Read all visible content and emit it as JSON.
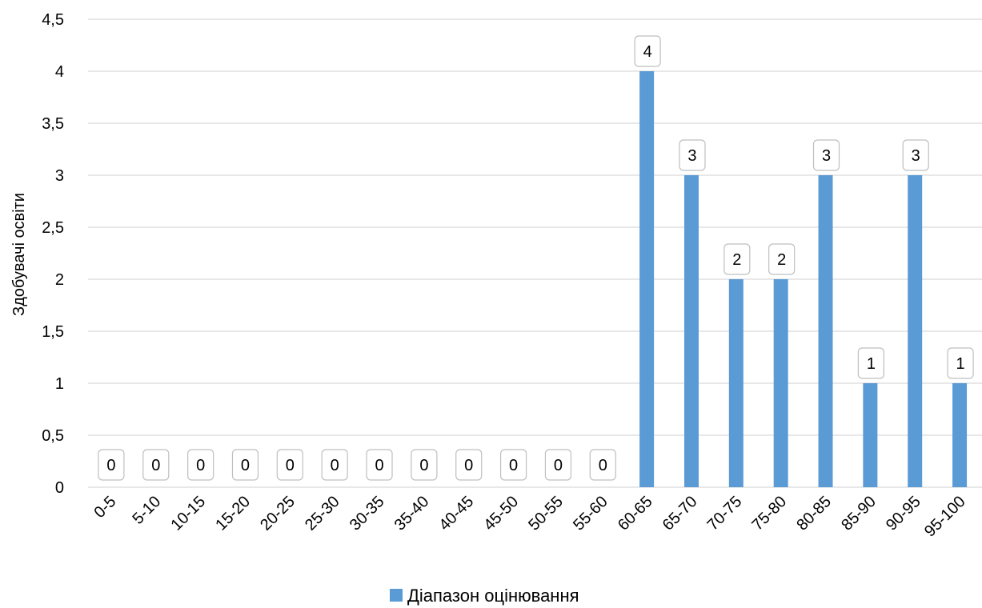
{
  "chart_data": {
    "type": "bar",
    "title": "",
    "xlabel": "",
    "ylabel": "Здобувачі освіти",
    "ylim": [
      0,
      4.5
    ],
    "yticks": [
      "0",
      "0,5",
      "1",
      "1,5",
      "2",
      "2,5",
      "3",
      "3,5",
      "4",
      "4,5"
    ],
    "grid": true,
    "legend_position": "bottom",
    "categories": [
      "0-5",
      "5-10",
      "10-15",
      "15-20",
      "20-25",
      "25-30",
      "30-35",
      "35-40",
      "40-45",
      "45-50",
      "50-55",
      "55-60",
      "60-65",
      "65-70",
      "70-75",
      "75-80",
      "80-85",
      "85-90",
      "90-95",
      "95-100"
    ],
    "series": [
      {
        "name": "Діапазон оцінювання",
        "color": "#5B9BD5",
        "values": [
          0,
          0,
          0,
          0,
          0,
          0,
          0,
          0,
          0,
          0,
          0,
          0,
          4,
          3,
          2,
          2,
          3,
          1,
          3,
          1
        ],
        "data_labels": [
          "0",
          "0",
          "0",
          "0",
          "0",
          "0",
          "0",
          "0",
          "0",
          "0",
          "0",
          "0",
          "4",
          "3",
          "2",
          "2",
          "3",
          "1",
          "3",
          "1"
        ]
      }
    ]
  }
}
